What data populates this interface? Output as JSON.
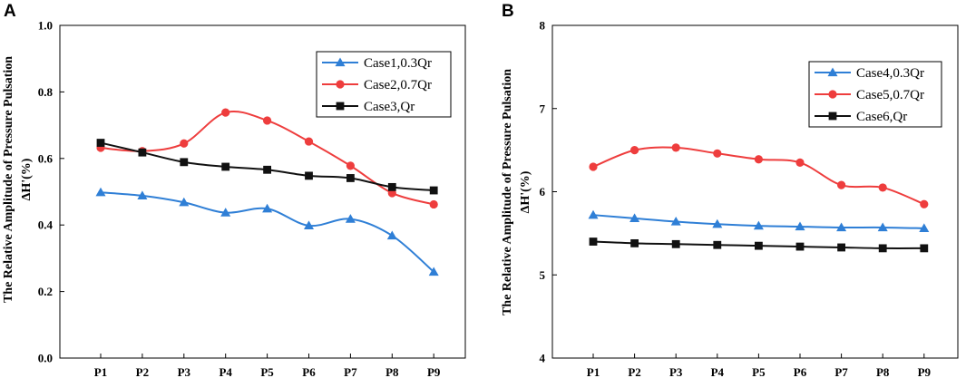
{
  "chart_data": [
    {
      "panel": "A",
      "type": "line",
      "categories": [
        "P1",
        "P2",
        "P3",
        "P4",
        "P5",
        "P6",
        "P7",
        "P8",
        "P9"
      ],
      "ylabel_line1": "The Relative Amplitude of Pressure Pulsation",
      "ylabel_line2": "ΔH'(%)",
      "ylim": [
        0.0,
        1.0
      ],
      "yticks": [
        0.0,
        0.2,
        0.4,
        0.6,
        0.8,
        1.0
      ],
      "ytick_labels": [
        "0.0",
        "0.2",
        "0.4",
        "0.6",
        "0.8",
        "1.0"
      ],
      "legend_position": "top-right",
      "series": [
        {
          "name": "Case1,0.3Qr",
          "color": "#2f7fd6",
          "marker": "triangle",
          "values": [
            0.498,
            0.488,
            0.468,
            0.437,
            0.449,
            0.398,
            0.418,
            0.368,
            0.259
          ]
        },
        {
          "name": "Case2,0.7Qr",
          "color": "#ee3d3d",
          "marker": "circle",
          "values": [
            0.632,
            0.622,
            0.645,
            0.738,
            0.714,
            0.651,
            0.578,
            0.496,
            0.462
          ]
        },
        {
          "name": "Case3,Qr",
          "color": "#111111",
          "marker": "square",
          "values": [
            0.647,
            0.618,
            0.589,
            0.575,
            0.566,
            0.548,
            0.541,
            0.514,
            0.504
          ]
        }
      ]
    },
    {
      "panel": "B",
      "type": "line",
      "categories": [
        "P1",
        "P2",
        "P3",
        "P4",
        "P5",
        "P6",
        "P7",
        "P8",
        "P9"
      ],
      "ylabel_line1": "The Relative Amplitude of Pressure Pulsation",
      "ylabel_line2": "ΔH'(%)",
      "ylim": [
        4,
        8
      ],
      "yticks": [
        4,
        5,
        6,
        7,
        8
      ],
      "ytick_labels": [
        "4",
        "5",
        "6",
        "7",
        "8"
      ],
      "legend_position": "top-right",
      "series": [
        {
          "name": "Case4,0.3Qr",
          "color": "#2f7fd6",
          "marker": "triangle",
          "values": [
            5.72,
            5.68,
            5.64,
            5.61,
            5.59,
            5.58,
            5.57,
            5.57,
            5.56
          ]
        },
        {
          "name": "Case5,0.7Qr",
          "color": "#ee3d3d",
          "marker": "circle",
          "values": [
            6.3,
            6.5,
            6.53,
            6.46,
            6.39,
            6.35,
            6.08,
            6.05,
            5.85
          ]
        },
        {
          "name": "Case6,Qr",
          "color": "#111111",
          "marker": "square",
          "values": [
            5.4,
            5.38,
            5.37,
            5.36,
            5.35,
            5.34,
            5.33,
            5.32,
            5.32
          ]
        }
      ]
    }
  ]
}
